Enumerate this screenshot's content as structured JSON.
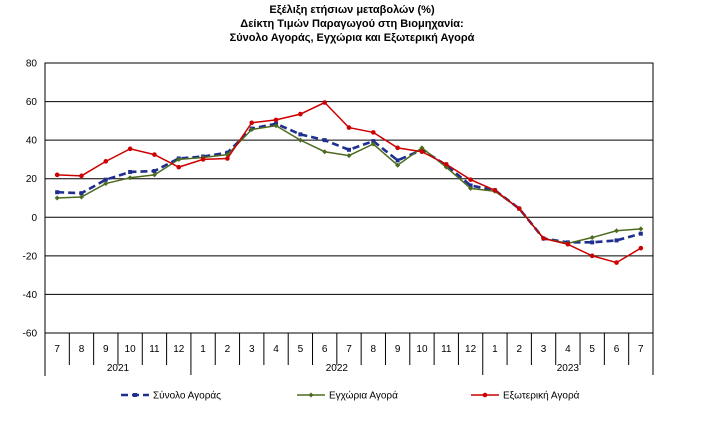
{
  "chart_data": {
    "type": "line",
    "title_lines": [
      "Εξέλιξη ετήσιων μεταβολών (%)",
      "Δείκτη Τιμών Παραγωγού στη Βιομηχανία:",
      "Σύνολο Αγοράς, Εγχώρια και Εξωτερική Αγορά"
    ],
    "xlabel": "",
    "ylabel": "",
    "ylim": [
      -60,
      80
    ],
    "yticks": [
      "80",
      "60",
      "40",
      "20",
      "0",
      "-20",
      "-40",
      "-60"
    ],
    "ytick_values": [
      80,
      60,
      40,
      20,
      0,
      -20,
      -40,
      -60
    ],
    "grid": true,
    "categories": [
      "7",
      "8",
      "9",
      "10",
      "11",
      "12",
      "1",
      "2",
      "3",
      "4",
      "5",
      "6",
      "7",
      "8",
      "9",
      "10",
      "11",
      "12",
      "1",
      "2",
      "3",
      "4",
      "5",
      "6",
      "7"
    ],
    "years": [
      {
        "label": "2021",
        "start": 0,
        "end": 5
      },
      {
        "label": "2022",
        "start": 6,
        "end": 17
      },
      {
        "label": "2023",
        "start": 18,
        "end": 24
      }
    ],
    "legend_position": "bottom",
    "series": [
      {
        "name": "Σύνολο Αγοράς",
        "color": "#1f2f8f",
        "style": "dashed-square",
        "values": [
          13,
          12.5,
          19.5,
          23.5,
          24,
          30.5,
          31.5,
          33.5,
          46,
          48.5,
          43,
          40,
          35,
          39.5,
          29.5,
          35,
          27,
          16.5,
          14,
          4.5,
          -11,
          -13,
          -13,
          -12,
          -8.5
        ]
      },
      {
        "name": "Εγχώρια Αγορά",
        "color": "#4d6b1e",
        "style": "solid-diamond",
        "values": [
          10,
          10.5,
          17.5,
          20.5,
          22,
          30,
          31,
          32.5,
          45.5,
          47.5,
          40,
          34,
          32,
          38,
          27,
          36,
          26,
          15,
          13.5,
          4.5,
          -11,
          -13.5,
          -10.5,
          -7,
          -6
        ]
      },
      {
        "name": "Εξωτερική Αγορά",
        "color": "#cc0000",
        "style": "solid-circle",
        "values": [
          22,
          21.5,
          29,
          35.5,
          32.5,
          26,
          30,
          30.5,
          49,
          50.5,
          53.5,
          59.5,
          46.5,
          44,
          36,
          34,
          27.5,
          19.5,
          14,
          4.5,
          -11,
          -14,
          -20,
          -23.5,
          -16
        ]
      }
    ]
  }
}
